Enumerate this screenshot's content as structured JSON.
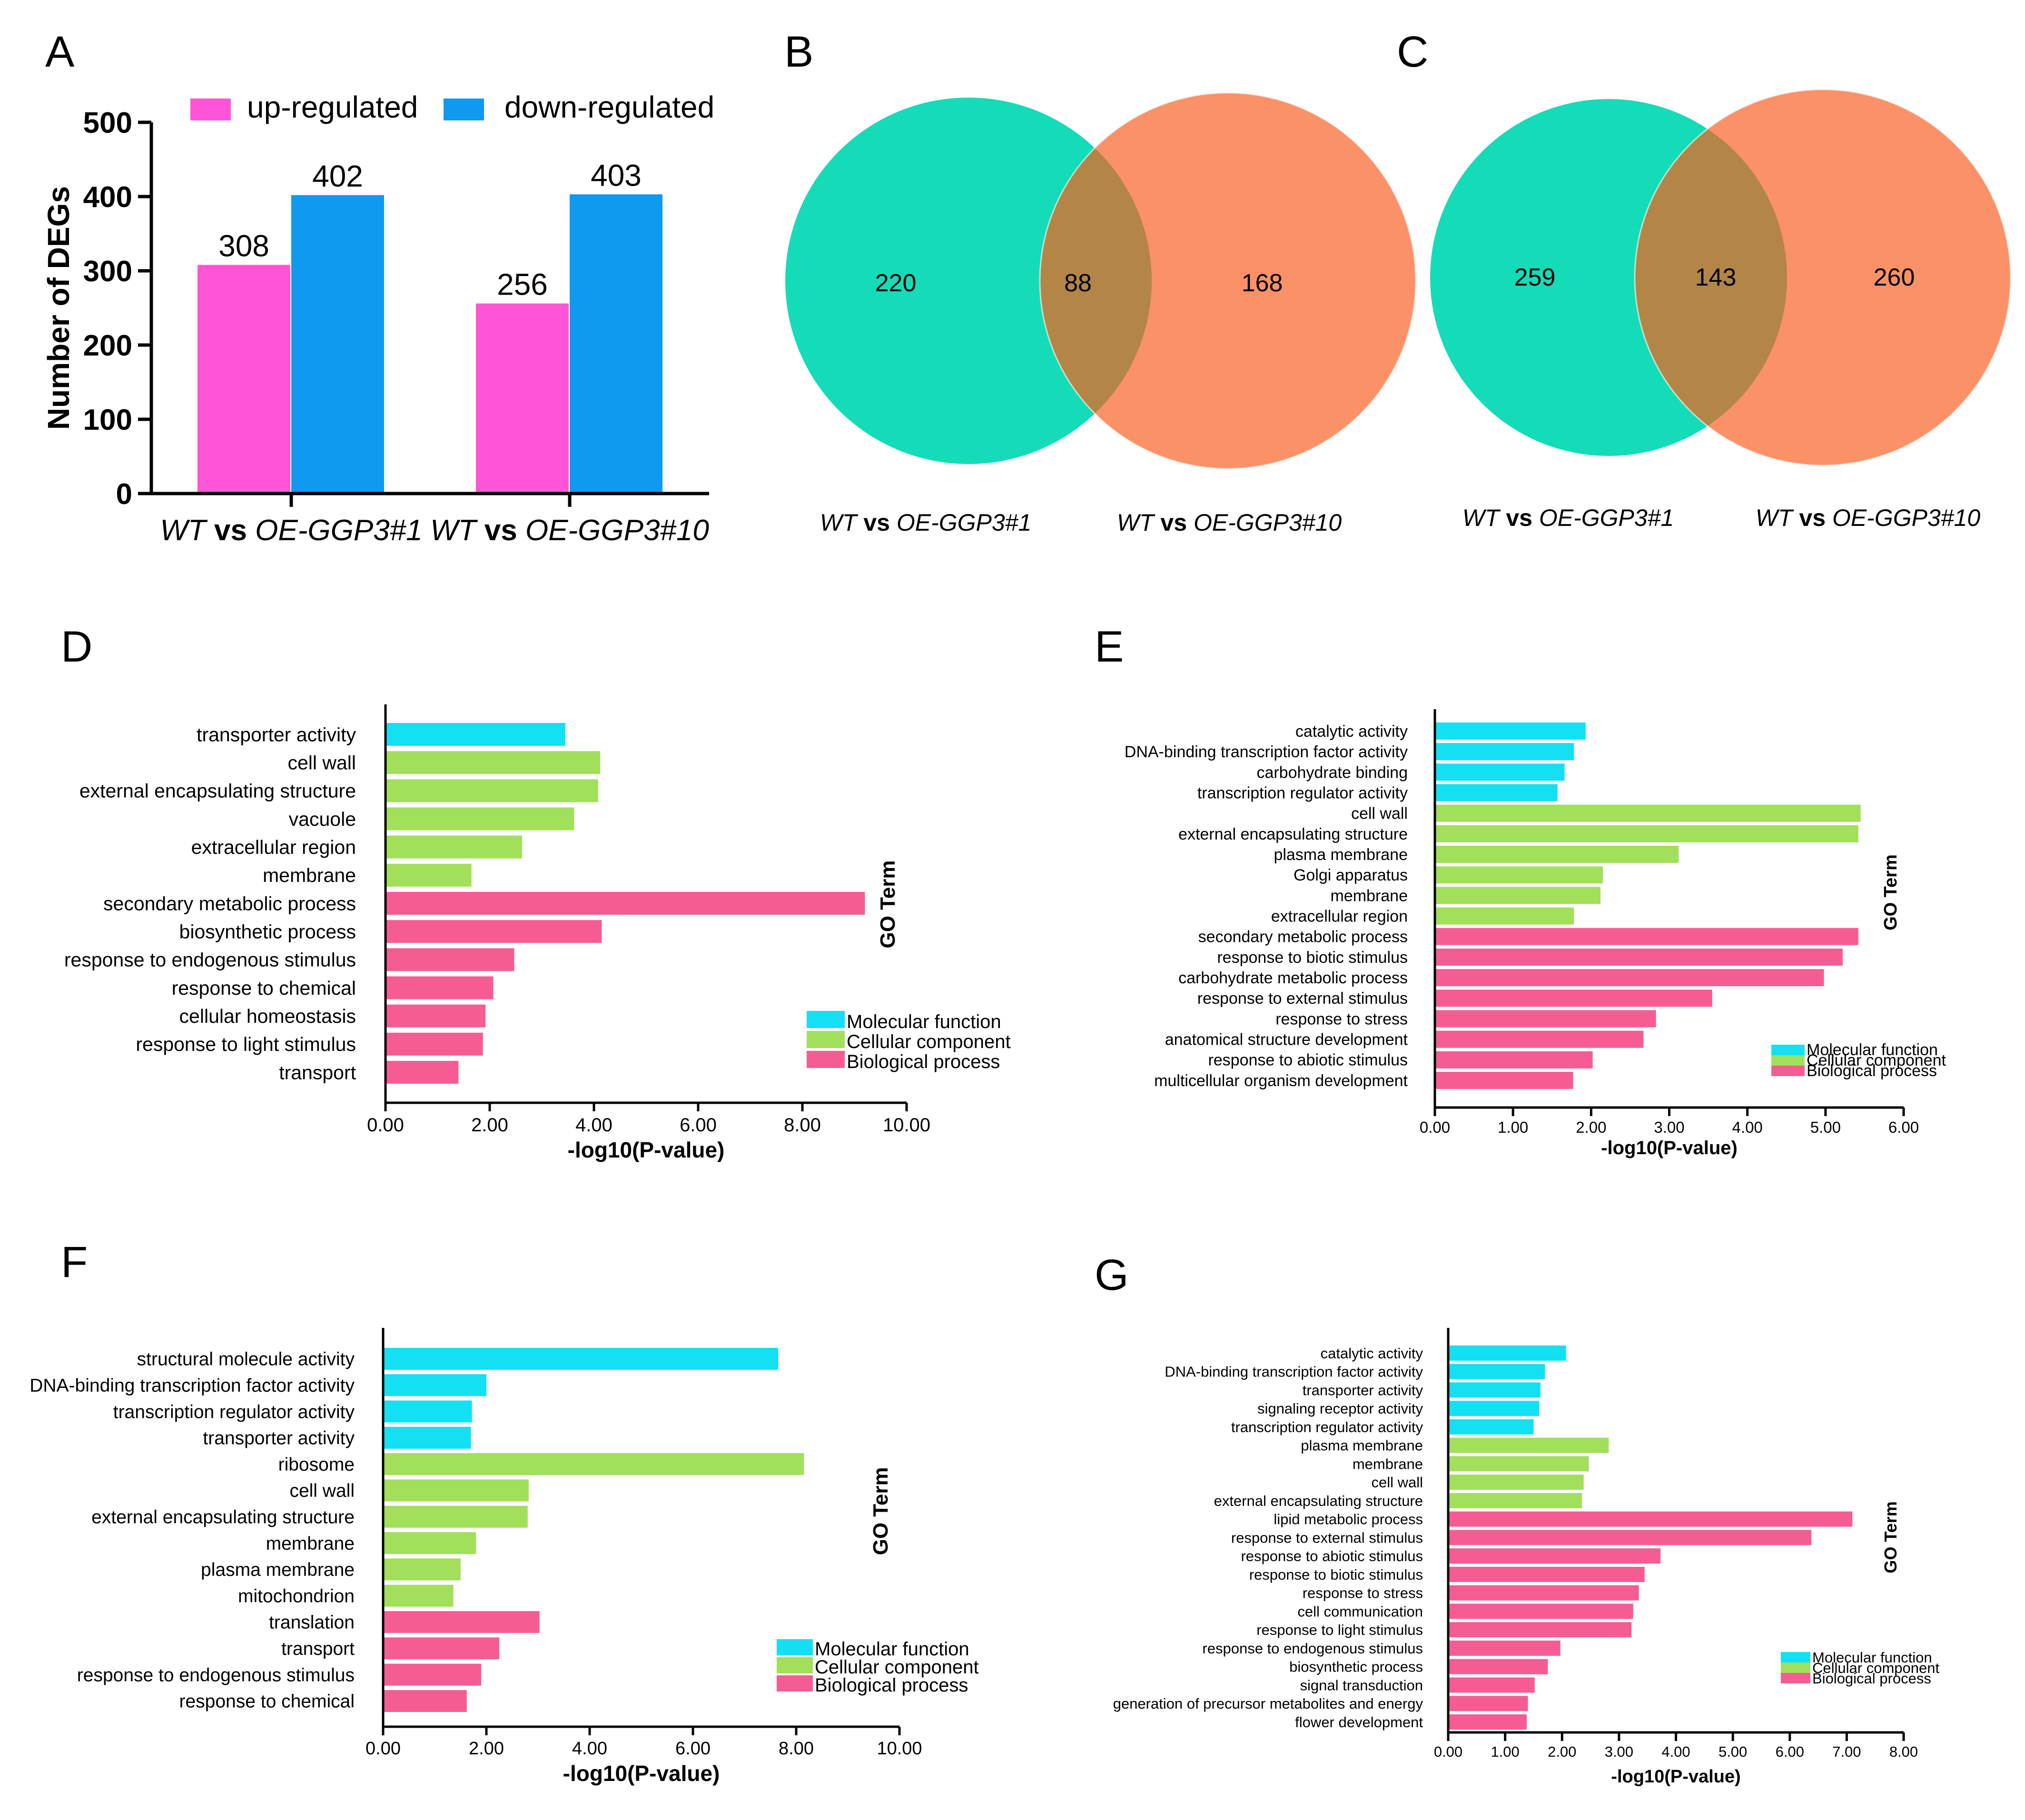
{
  "colors": {
    "up": "#ff55d6",
    "down": "#0f9af0",
    "venn_left": "#14dcb8",
    "venn_right": "#fb9167",
    "venn_overlap": "#b38546",
    "mf": "#13e0f2",
    "cc": "#a2df5b",
    "bp": "#f65c94",
    "axis": "#000000",
    "text": "#000000"
  },
  "chart_data": [
    {
      "panel": "A",
      "type": "bar",
      "ylabel": "Number of DEGs",
      "ylim": [
        0,
        500
      ],
      "yticks": [
        "0",
        "100",
        "200",
        "300",
        "400",
        "500"
      ],
      "categories": [
        {
          "wt": "WT",
          "vs": "vs",
          "oe": "OE-GGP3#1"
        },
        {
          "wt": "WT",
          "vs": "vs",
          "oe": "OE-GGP3#10"
        }
      ],
      "series": [
        {
          "name": "up-regulated",
          "values": [
            308,
            256
          ],
          "labels": [
            "308",
            "256"
          ]
        },
        {
          "name": "down-regulated",
          "values": [
            402,
            403
          ],
          "labels": [
            "402",
            "403"
          ]
        }
      ]
    },
    {
      "panel": "B",
      "type": "venn",
      "left_count": "220",
      "overlap_count": "88",
      "right_count": "168",
      "left_label": {
        "wt": "WT",
        "vs": "vs",
        "oe": "OE-GGP3#1"
      },
      "right_label": {
        "wt": "WT",
        "vs": "vs",
        "oe": "OE-GGP3#10"
      }
    },
    {
      "panel": "C",
      "type": "venn",
      "left_count": "259",
      "overlap_count": "143",
      "right_count": "260",
      "left_label": {
        "wt": "WT",
        "vs": "vs",
        "oe": "OE-GGP3#1"
      },
      "right_label": {
        "wt": "WT",
        "vs": "vs",
        "oe": "OE-GGP3#10"
      }
    },
    {
      "panel": "D",
      "type": "bar-horizontal",
      "xlabel": "-log10(P-value)",
      "ylabel": "GO Term",
      "xlim": [
        0,
        10
      ],
      "xticks": [
        "0.00",
        "2.00",
        "4.00",
        "6.00",
        "8.00",
        "10.00"
      ],
      "legend": [
        "Molecular function",
        "Cellular component",
        "Biological process"
      ],
      "bars": [
        {
          "label": "transporter activity",
          "value": 3.45,
          "category": "mf"
        },
        {
          "label": "cell wall",
          "value": 4.12,
          "category": "cc"
        },
        {
          "label": "external encapsulating structure",
          "value": 4.08,
          "category": "cc"
        },
        {
          "label": "vacuole",
          "value": 3.62,
          "category": "cc"
        },
        {
          "label": "extracellular region",
          "value": 2.62,
          "category": "cc"
        },
        {
          "label": "membrane",
          "value": 1.65,
          "category": "cc"
        },
        {
          "label": "secondary metabolic process",
          "value": 9.2,
          "category": "bp"
        },
        {
          "label": "biosynthetic process",
          "value": 4.15,
          "category": "bp"
        },
        {
          "label": "response to endogenous stimulus",
          "value": 2.47,
          "category": "bp"
        },
        {
          "label": "response to chemical",
          "value": 2.07,
          "category": "bp"
        },
        {
          "label": "cellular homeostasis",
          "value": 1.92,
          "category": "bp"
        },
        {
          "label": "response to light stimulus",
          "value": 1.87,
          "category": "bp"
        },
        {
          "label": "transport",
          "value": 1.4,
          "category": "bp"
        }
      ]
    },
    {
      "panel": "E",
      "type": "bar-horizontal",
      "xlabel": "-log10(P-value)",
      "ylabel": "GO Term",
      "xlim": [
        0,
        6
      ],
      "xticks": [
        "0.00",
        "1.00",
        "2.00",
        "3.00",
        "4.00",
        "5.00",
        "6.00"
      ],
      "legend": [
        "Molecular function",
        "Cellular component",
        "Biological process"
      ],
      "bars": [
        {
          "label": "catalytic activity",
          "value": 1.93,
          "category": "mf"
        },
        {
          "label": "DNA-binding transcription factor activity",
          "value": 1.78,
          "category": "mf"
        },
        {
          "label": "carbohydrate binding",
          "value": 1.66,
          "category": "mf"
        },
        {
          "label": "transcription regulator activity",
          "value": 1.57,
          "category": "mf"
        },
        {
          "label": "cell wall",
          "value": 5.45,
          "category": "cc"
        },
        {
          "label": "external encapsulating structure",
          "value": 5.42,
          "category": "cc"
        },
        {
          "label": "plasma membrane",
          "value": 3.12,
          "category": "cc"
        },
        {
          "label": "Golgi apparatus",
          "value": 2.15,
          "category": "cc"
        },
        {
          "label": "membrane",
          "value": 2.12,
          "category": "cc"
        },
        {
          "label": "extracellular region",
          "value": 1.78,
          "category": "cc"
        },
        {
          "label": "secondary metabolic process",
          "value": 5.42,
          "category": "bp"
        },
        {
          "label": "response to biotic stimulus",
          "value": 5.22,
          "category": "bp"
        },
        {
          "label": "carbohydrate metabolic process",
          "value": 4.98,
          "category": "bp"
        },
        {
          "label": "response to external stimulus",
          "value": 3.55,
          "category": "bp"
        },
        {
          "label": "response to stress",
          "value": 2.83,
          "category": "bp"
        },
        {
          "label": "anatomical structure development",
          "value": 2.67,
          "category": "bp"
        },
        {
          "label": "response to abiotic stimulus",
          "value": 2.02,
          "category": "bp"
        },
        {
          "label": "multicellular organism development",
          "value": 1.77,
          "category": "bp"
        }
      ]
    },
    {
      "panel": "F",
      "type": "bar-horizontal",
      "xlabel": "-log10(P-value)",
      "ylabel": "GO Term",
      "xlim": [
        0,
        10
      ],
      "xticks": [
        "0.00",
        "2.00",
        "4.00",
        "6.00",
        "8.00",
        "10.00"
      ],
      "legend": [
        "Molecular function",
        "Cellular component",
        "Biological process"
      ],
      "bars": [
        {
          "label": "structural molecule activity",
          "value": 7.65,
          "category": "mf"
        },
        {
          "label": "DNA-binding transcription factor activity",
          "value": 2.0,
          "category": "mf"
        },
        {
          "label": "transcription regulator activity",
          "value": 1.72,
          "category": "mf"
        },
        {
          "label": "transporter activity",
          "value": 1.7,
          "category": "mf"
        },
        {
          "label": "ribosome",
          "value": 8.15,
          "category": "cc"
        },
        {
          "label": "cell wall",
          "value": 2.82,
          "category": "cc"
        },
        {
          "label": "external encapsulating structure",
          "value": 2.8,
          "category": "cc"
        },
        {
          "label": "membrane",
          "value": 1.8,
          "category": "cc"
        },
        {
          "label": "plasma membrane",
          "value": 1.5,
          "category": "cc"
        },
        {
          "label": "mitochondrion",
          "value": 1.36,
          "category": "cc"
        },
        {
          "label": "translation",
          "value": 3.03,
          "category": "bp"
        },
        {
          "label": "transport",
          "value": 2.25,
          "category": "bp"
        },
        {
          "label": "response to endogenous stimulus",
          "value": 1.9,
          "category": "bp"
        },
        {
          "label": "response to chemical",
          "value": 1.62,
          "category": "bp"
        }
      ]
    },
    {
      "panel": "G",
      "type": "bar-horizontal",
      "xlabel": "-log10(P-value)",
      "ylabel": "GO Term",
      "xlim": [
        0,
        8
      ],
      "xticks": [
        "0.00",
        "1.00",
        "2.00",
        "3.00",
        "4.00",
        "5.00",
        "6.00",
        "7.00",
        "8.00"
      ],
      "legend": [
        "Molecular function",
        "Cellular component",
        "Biological process"
      ],
      "bars": [
        {
          "label": "catalytic activity",
          "value": 2.07,
          "category": "mf"
        },
        {
          "label": "DNA-binding transcription factor activity",
          "value": 1.7,
          "category": "mf"
        },
        {
          "label": "transporter activity",
          "value": 1.62,
          "category": "mf"
        },
        {
          "label": "signaling receptor activity",
          "value": 1.6,
          "category": "mf"
        },
        {
          "label": "transcription regulator activity",
          "value": 1.5,
          "category": "mf"
        },
        {
          "label": "plasma membrane",
          "value": 2.82,
          "category": "cc"
        },
        {
          "label": "membrane",
          "value": 2.47,
          "category": "cc"
        },
        {
          "label": "cell wall",
          "value": 2.38,
          "category": "cc"
        },
        {
          "label": "external encapsulating structure",
          "value": 2.35,
          "category": "cc"
        },
        {
          "label": "lipid metabolic process",
          "value": 7.1,
          "category": "bp"
        },
        {
          "label": "response to external stimulus",
          "value": 6.38,
          "category": "bp"
        },
        {
          "label": "response to abiotic stimulus",
          "value": 3.73,
          "category": "bp"
        },
        {
          "label": "response to biotic stimulus",
          "value": 3.45,
          "category": "bp"
        },
        {
          "label": "response to stress",
          "value": 3.35,
          "category": "bp"
        },
        {
          "label": "cell communication",
          "value": 3.25,
          "category": "bp"
        },
        {
          "label": "response to light stimulus",
          "value": 3.22,
          "category": "bp"
        },
        {
          "label": "response to endogenous stimulus",
          "value": 1.97,
          "category": "bp"
        },
        {
          "label": "biosynthetic process",
          "value": 1.75,
          "category": "bp"
        },
        {
          "label": "signal transduction",
          "value": 1.52,
          "category": "bp"
        },
        {
          "label": "generation of precursor metabolites and energy",
          "value": 1.4,
          "category": "bp"
        },
        {
          "label": "flower development",
          "value": 1.38,
          "category": "bp"
        }
      ]
    }
  ]
}
